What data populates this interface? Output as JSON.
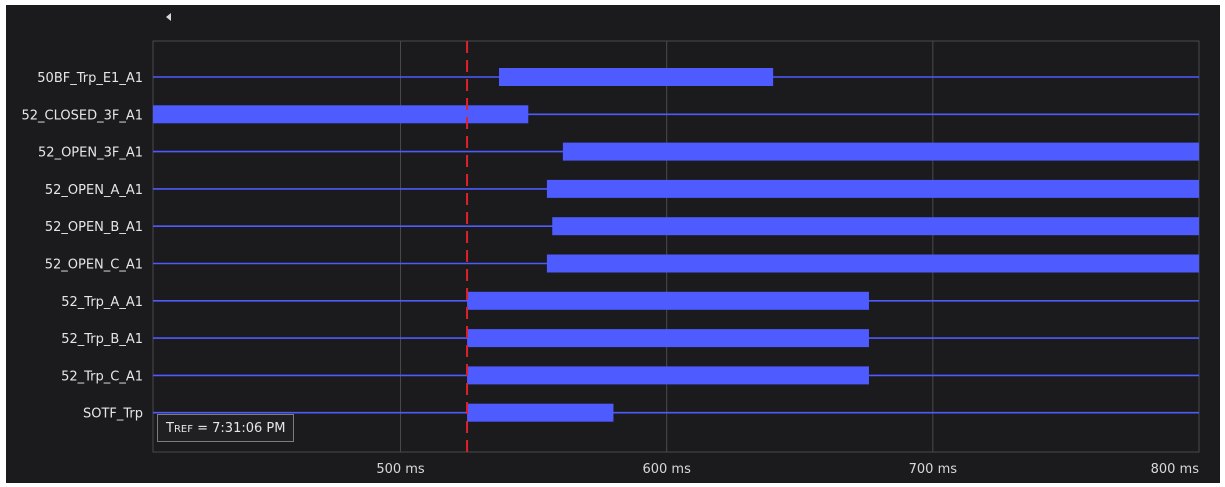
{
  "app": {
    "collapse_icon": "triangle-left-icon"
  },
  "chart_data": {
    "type": "timeline",
    "x_unit": "ms",
    "xlim": [
      407,
      800
    ],
    "x_ticks": [
      {
        "value": 500,
        "label": "500 ms"
      },
      {
        "value": 600,
        "label": "600 ms"
      },
      {
        "value": 700,
        "label": "700 ms"
      },
      {
        "value": 800,
        "label": "800 ms"
      }
    ],
    "reference_cursor": {
      "time": 525,
      "color": "#e0202a"
    },
    "signal_color": "#4e5bff",
    "background_color": "#1b1b1d",
    "grid": true,
    "signals": [
      {
        "name": "50BF_Trp_E1_A1",
        "active": [
          [
            537,
            640
          ]
        ]
      },
      {
        "name": "52_CLOSED_3F_A1",
        "active": [
          [
            407,
            548
          ]
        ]
      },
      {
        "name": "52_OPEN_3F_A1",
        "active": [
          [
            561,
            800
          ]
        ]
      },
      {
        "name": "52_OPEN_A_A1",
        "active": [
          [
            555,
            800
          ]
        ]
      },
      {
        "name": "52_OPEN_B_A1",
        "active": [
          [
            557,
            800
          ]
        ]
      },
      {
        "name": "52_OPEN_C_A1",
        "active": [
          [
            555,
            800
          ]
        ]
      },
      {
        "name": "52_Trp_A_A1",
        "active": [
          [
            525,
            676
          ]
        ]
      },
      {
        "name": "52_Trp_B_A1",
        "active": [
          [
            525,
            676
          ]
        ]
      },
      {
        "name": "52_Trp_C_A1",
        "active": [
          [
            525,
            676
          ]
        ]
      },
      {
        "name": "SOTF_Trp",
        "active": [
          [
            525,
            580
          ]
        ]
      }
    ]
  },
  "tref": {
    "prefix": "T",
    "subscript": "REF",
    "value": " = 7:31:06 PM"
  }
}
